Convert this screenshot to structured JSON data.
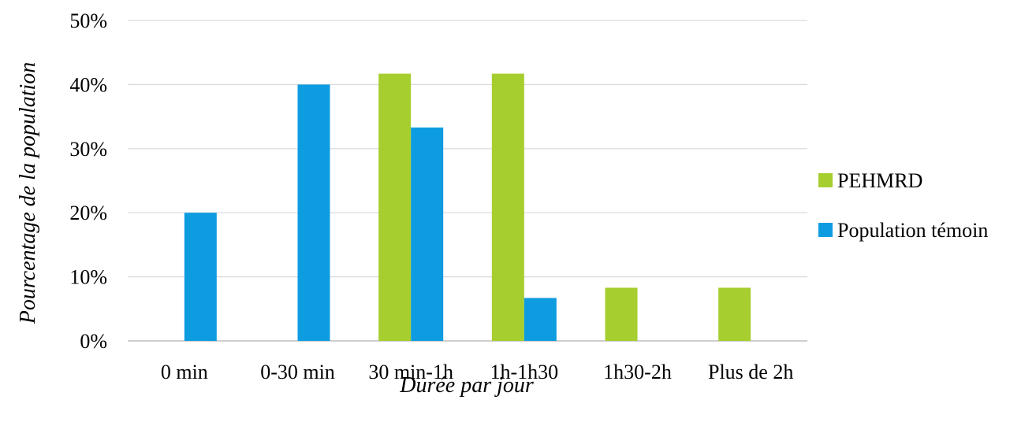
{
  "chart_data": {
    "type": "bar",
    "categories": [
      "0 min",
      "0-30 min",
      "30 min-1h",
      "1h-1h30",
      "1h30-2h",
      "Plus de 2h"
    ],
    "series": [
      {
        "name": "PEHMRD",
        "color": "#a6ce2f",
        "values": [
          0,
          0,
          41.7,
          41.7,
          8.3,
          8.3
        ]
      },
      {
        "name": "Population témoin",
        "color": "#0e9ce0",
        "values": [
          20,
          40,
          33.3,
          6.7,
          0,
          0
        ]
      }
    ],
    "title": "",
    "xlabel": "Durée par jour",
    "ylabel": "Pourcentage de la population",
    "ylim": [
      0,
      50
    ],
    "yticks": [
      "0%",
      "10%",
      "20%",
      "30%",
      "40%",
      "50%"
    ],
    "grid": true,
    "legend_position": "right"
  }
}
